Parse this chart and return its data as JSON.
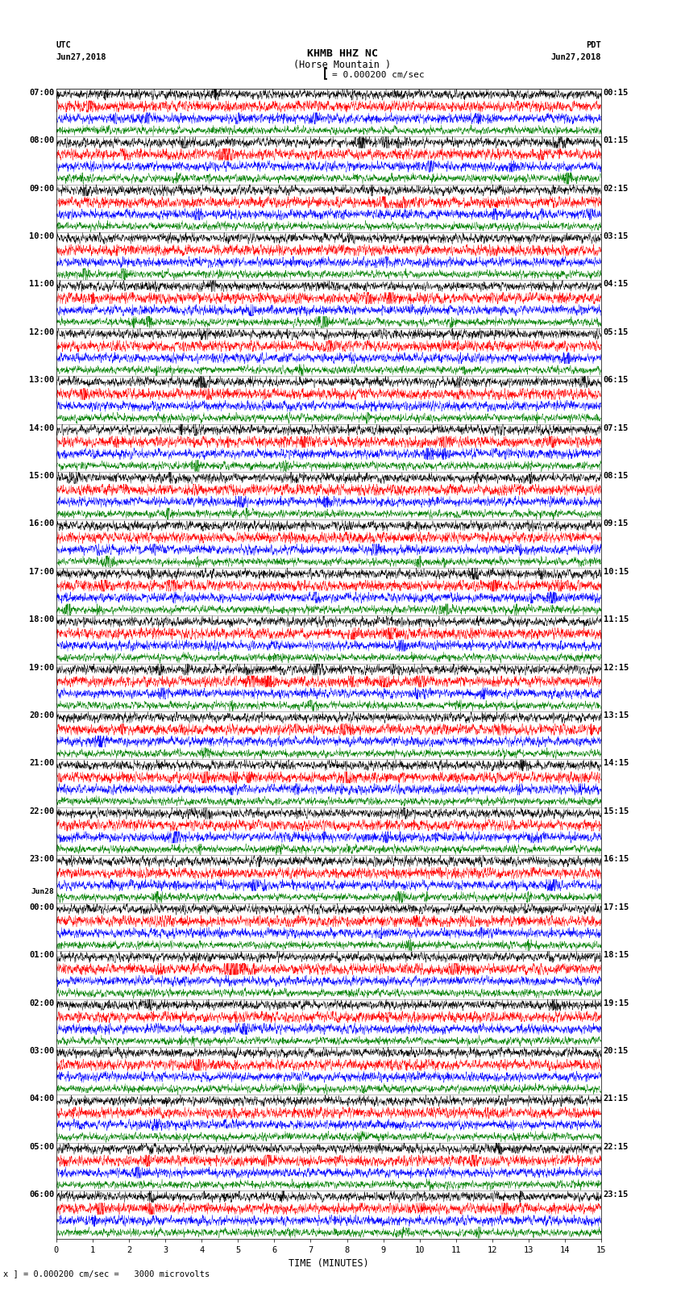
{
  "title_line1": "KHMB HHZ NC",
  "title_line2": "(Horse Mountain )",
  "scale_label": "= 0.000200 cm/sec",
  "utc_label": "UTC",
  "utc_date": "Jun27,2018",
  "pdt_label": "PDT",
  "pdt_date": "Jun27,2018",
  "bottom_label": "x ] = 0.000200 cm/sec =   3000 microvolts",
  "xlabel": "TIME (MINUTES)",
  "left_times": [
    "07:00",
    "08:00",
    "09:00",
    "10:00",
    "11:00",
    "12:00",
    "13:00",
    "14:00",
    "15:00",
    "16:00",
    "17:00",
    "18:00",
    "19:00",
    "20:00",
    "21:00",
    "22:00",
    "23:00",
    "Jun28\n00:00",
    "01:00",
    "02:00",
    "03:00",
    "04:00",
    "05:00",
    "06:00"
  ],
  "right_times": [
    "00:15",
    "01:15",
    "02:15",
    "03:15",
    "04:15",
    "05:15",
    "06:15",
    "07:15",
    "08:15",
    "09:15",
    "10:15",
    "11:15",
    "12:15",
    "13:15",
    "14:15",
    "15:15",
    "16:15",
    "17:15",
    "18:15",
    "19:15",
    "20:15",
    "21:15",
    "22:15",
    "23:15"
  ],
  "n_rows": 24,
  "traces_per_row": 4,
  "colors": [
    "black",
    "red",
    "blue",
    "green"
  ],
  "bg_color": "white",
  "noise_amp": [
    0.055,
    0.065,
    0.055,
    0.045
  ],
  "fig_width": 8.5,
  "fig_height": 16.13,
  "dpi": 100,
  "xlim": [
    0,
    15
  ],
  "xticks": [
    0,
    1,
    2,
    3,
    4,
    5,
    6,
    7,
    8,
    9,
    10,
    11,
    12,
    13,
    14,
    15
  ]
}
